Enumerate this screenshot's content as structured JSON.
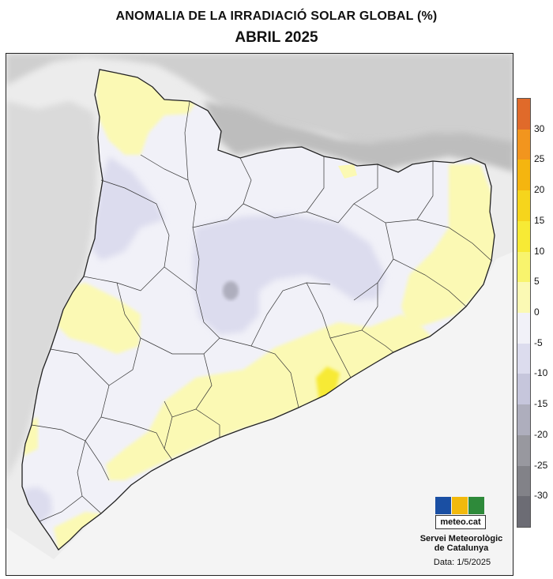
{
  "header": {
    "title": "ANOMALIA DE LA IRRADIACIÓ SOLAR GLOBAL (%)",
    "subtitle": "ABRIL 2025"
  },
  "legend": {
    "classes": [
      {
        "label": "30",
        "color": "#e06a2a"
      },
      {
        "label": "25",
        "color": "#f2951e"
      },
      {
        "label": "20",
        "color": "#f5b50f"
      },
      {
        "label": "15",
        "color": "#f6d51c"
      },
      {
        "label": "10",
        "color": "#f7ea35"
      },
      {
        "label": "5",
        "color": "#f8f46d"
      },
      {
        "label": "0",
        "color": "#fbf9b4"
      },
      {
        "label": "-5",
        "color": "#f1f1f8"
      },
      {
        "label": "-10",
        "color": "#dcdcee"
      },
      {
        "label": "-15",
        "color": "#c6c6dc"
      },
      {
        "label": "-20",
        "color": "#aeaebd"
      },
      {
        "label": "-25",
        "color": "#98989f"
      },
      {
        "label": "-30",
        "color": "#828288"
      },
      {
        "label": "",
        "color": "#6c6c74"
      }
    ]
  },
  "logo": {
    "text": "meteo.cat",
    "colors": [
      "#1a4fa3",
      "#f2b90c",
      "#2e8a3a"
    ]
  },
  "footer": {
    "institution_line1": "Servei Meteorològic",
    "institution_line2": "de Catalunya",
    "date": "Data: 1/5/2025"
  }
}
